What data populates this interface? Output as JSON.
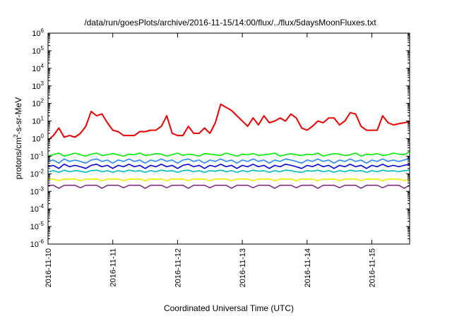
{
  "chart_data": {
    "type": "line",
    "title": "/data/run/goesPlots/archive/2016-11-15/14:00/flux/../flux/5daysMoonFluxes.txt",
    "xlabel": "Coordinated Universal Time (UTC)",
    "ylabel": {
      "base": "protons/cm",
      "sup": "2",
      "rest": "-s-sr-MeV"
    },
    "x_ticks": [
      "2016-11-10",
      "2016-11-11",
      "2016-11-12",
      "2016-11-13",
      "2016-11-14",
      "2016-11-15"
    ],
    "xlim": [
      "2016-11-10",
      "2016-11-15 14:00"
    ],
    "yscale": "log",
    "ylim": [
      1e-06,
      1000000.0
    ],
    "y_ticks": [
      {
        "base": "10",
        "exp": "-6",
        "value": 1e-06
      },
      {
        "base": "10",
        "exp": "-5",
        "value": 1e-05
      },
      {
        "base": "10",
        "exp": "-4",
        "value": 0.0001
      },
      {
        "base": "10",
        "exp": "-3",
        "value": 0.001
      },
      {
        "base": "10",
        "exp": "-2",
        "value": 0.01
      },
      {
        "base": "10",
        "exp": "-1",
        "value": 0.1
      },
      {
        "base": "10",
        "exp": "0",
        "value": 1
      },
      {
        "base": "10",
        "exp": "1",
        "value": 10
      },
      {
        "base": "10",
        "exp": "2",
        "value": 100
      },
      {
        "base": "10",
        "exp": "3",
        "value": 1000
      },
      {
        "base": "10",
        "exp": "4",
        "value": 10000
      },
      {
        "base": "10",
        "exp": "5",
        "value": 100000
      },
      {
        "base": "10",
        "exp": "6",
        "value": 1000000
      }
    ],
    "grid": false,
    "x": [
      "2016-11-10 00:00",
      "2016-11-10 02:00",
      "2016-11-10 04:00",
      "2016-11-10 06:00",
      "2016-11-10 08:00",
      "2016-11-10 10:00",
      "2016-11-10 12:00",
      "2016-11-10 14:00",
      "2016-11-10 16:00",
      "2016-11-10 18:00",
      "2016-11-10 20:00",
      "2016-11-10 22:00",
      "2016-11-11 00:00",
      "2016-11-11 02:00",
      "2016-11-11 04:00",
      "2016-11-11 06:00",
      "2016-11-11 08:00",
      "2016-11-11 10:00",
      "2016-11-11 12:00",
      "2016-11-11 14:00",
      "2016-11-11 16:00",
      "2016-11-11 18:00",
      "2016-11-11 20:00",
      "2016-11-11 22:00",
      "2016-11-12 00:00",
      "2016-11-12 02:00",
      "2016-11-12 04:00",
      "2016-11-12 06:00",
      "2016-11-12 08:00",
      "2016-11-12 10:00",
      "2016-11-12 12:00",
      "2016-11-12 14:00",
      "2016-11-12 16:00",
      "2016-11-12 18:00",
      "2016-11-12 20:00",
      "2016-11-12 22:00",
      "2016-11-13 00:00",
      "2016-11-13 02:00",
      "2016-11-13 04:00",
      "2016-11-13 06:00",
      "2016-11-13 08:00",
      "2016-11-13 10:00",
      "2016-11-13 12:00",
      "2016-11-13 14:00",
      "2016-11-13 16:00",
      "2016-11-13 18:00",
      "2016-11-13 20:00",
      "2016-11-13 22:00",
      "2016-11-14 00:00",
      "2016-11-14 02:00",
      "2016-11-14 04:00",
      "2016-11-14 06:00",
      "2016-11-14 08:00",
      "2016-11-14 10:00",
      "2016-11-14 12:00",
      "2016-11-14 14:00",
      "2016-11-14 16:00",
      "2016-11-14 18:00",
      "2016-11-14 20:00",
      "2016-11-14 22:00",
      "2016-11-15 00:00",
      "2016-11-15 02:00",
      "2016-11-15 04:00",
      "2016-11-15 06:00",
      "2016-11-15 08:00",
      "2016-11-15 10:00",
      "2016-11-15 12:00",
      "2016-11-15 14:00"
    ],
    "series": [
      {
        "color": "#ee0000",
        "values": [
          0.8,
          1.5,
          4,
          1.2,
          1.5,
          1.2,
          2,
          5,
          35,
          20,
          25,
          8,
          3,
          2.5,
          1.5,
          1.5,
          1.5,
          2.5,
          2.5,
          3,
          3,
          5,
          20,
          2,
          1.5,
          1.5,
          5,
          2,
          2,
          4,
          2,
          8,
          90,
          60,
          40,
          20,
          10,
          5,
          15,
          6,
          20,
          8,
          10,
          15,
          10,
          25,
          15,
          4,
          3,
          5,
          10,
          8,
          15,
          15,
          6,
          10,
          30,
          25,
          5,
          3,
          3,
          3,
          20,
          8,
          6,
          7,
          8,
          9
        ]
      },
      {
        "color": "#00ee00",
        "values": [
          0.1,
          0.12,
          0.15,
          0.1,
          0.12,
          0.15,
          0.12,
          0.1,
          0.13,
          0.15,
          0.11,
          0.12,
          0.14,
          0.12,
          0.1,
          0.13,
          0.12,
          0.15,
          0.11,
          0.12,
          0.14,
          0.13,
          0.1,
          0.12,
          0.15,
          0.11,
          0.13,
          0.12,
          0.1,
          0.14,
          0.13,
          0.12,
          0.11,
          0.15,
          0.12,
          0.1,
          0.13,
          0.12,
          0.14,
          0.11,
          0.12,
          0.13,
          0.15,
          0.1,
          0.12,
          0.14,
          0.12,
          0.11,
          0.13,
          0.12,
          0.15,
          0.1,
          0.12,
          0.14,
          0.13,
          0.11,
          0.12,
          0.15,
          0.1,
          0.13,
          0.12,
          0.14,
          0.11,
          0.12,
          0.15,
          0.13,
          0.12,
          0.18
        ]
      },
      {
        "color": "#2288ff",
        "values": [
          0.05,
          0.06,
          0.04,
          0.07,
          0.05,
          0.06,
          0.05,
          0.04,
          0.06,
          0.07,
          0.05,
          0.06,
          0.04,
          0.06,
          0.05,
          0.07,
          0.05,
          0.06,
          0.04,
          0.06,
          0.05,
          0.07,
          0.05,
          0.06,
          0.04,
          0.06,
          0.07,
          0.05,
          0.06,
          0.04,
          0.06,
          0.05,
          0.07,
          0.05,
          0.06,
          0.04,
          0.06,
          0.05,
          0.07,
          0.05,
          0.06,
          0.04,
          0.06,
          0.05,
          0.07,
          0.06,
          0.05,
          0.04,
          0.06,
          0.05,
          0.07,
          0.05,
          0.06,
          0.04,
          0.06,
          0.05,
          0.07,
          0.05,
          0.06,
          0.04,
          0.06,
          0.05,
          0.07,
          0.05,
          0.06,
          0.05,
          0.06,
          0.08
        ]
      },
      {
        "color": "#0000dd",
        "values": [
          0.025,
          0.03,
          0.02,
          0.035,
          0.025,
          0.03,
          0.025,
          0.02,
          0.03,
          0.035,
          0.025,
          0.03,
          0.02,
          0.03,
          0.025,
          0.035,
          0.025,
          0.03,
          0.02,
          0.03,
          0.025,
          0.035,
          0.025,
          0.03,
          0.02,
          0.03,
          0.035,
          0.025,
          0.03,
          0.02,
          0.03,
          0.025,
          0.035,
          0.025,
          0.03,
          0.02,
          0.03,
          0.025,
          0.035,
          0.025,
          0.03,
          0.02,
          0.03,
          0.025,
          0.035,
          0.03,
          0.025,
          0.02,
          0.03,
          0.025,
          0.035,
          0.025,
          0.03,
          0.02,
          0.03,
          0.025,
          0.035,
          0.025,
          0.03,
          0.02,
          0.03,
          0.025,
          0.035,
          0.025,
          0.03,
          0.025,
          0.03,
          0.035
        ]
      },
      {
        "color": "#00bbbb",
        "values": [
          0.013,
          0.015,
          0.012,
          0.016,
          0.013,
          0.015,
          0.014,
          0.012,
          0.015,
          0.016,
          0.013,
          0.015,
          0.012,
          0.015,
          0.013,
          0.016,
          0.014,
          0.015,
          0.012,
          0.015,
          0.013,
          0.016,
          0.014,
          0.015,
          0.012,
          0.015,
          0.016,
          0.013,
          0.015,
          0.012,
          0.015,
          0.014,
          0.016,
          0.013,
          0.015,
          0.012,
          0.015,
          0.013,
          0.016,
          0.014,
          0.015,
          0.012,
          0.015,
          0.013,
          0.016,
          0.015,
          0.013,
          0.012,
          0.015,
          0.014,
          0.016,
          0.013,
          0.015,
          0.012,
          0.015,
          0.013,
          0.016,
          0.014,
          0.015,
          0.012,
          0.015,
          0.013,
          0.016,
          0.014,
          0.015,
          0.013,
          0.015,
          0.016
        ]
      },
      {
        "color": "#eeee00",
        "values": [
          0.005,
          0.005,
          0.004,
          0.005,
          0.005,
          0.005,
          0.004,
          0.005,
          0.005,
          0.005,
          0.004,
          0.005,
          0.005,
          0.005,
          0.004,
          0.005,
          0.005,
          0.005,
          0.004,
          0.005,
          0.005,
          0.005,
          0.004,
          0.005,
          0.005,
          0.005,
          0.004,
          0.005,
          0.005,
          0.005,
          0.004,
          0.005,
          0.005,
          0.005,
          0.004,
          0.005,
          0.005,
          0.005,
          0.004,
          0.005,
          0.005,
          0.005,
          0.004,
          0.005,
          0.005,
          0.005,
          0.004,
          0.005,
          0.005,
          0.005,
          0.004,
          0.005,
          0.005,
          0.005,
          0.004,
          0.005,
          0.005,
          0.005,
          0.004,
          0.005,
          0.005,
          0.005,
          0.004,
          0.005,
          0.005,
          0.005,
          0.004,
          0.005
        ]
      },
      {
        "color": "#7f2a7f",
        "values": [
          0.0022,
          0.0022,
          0.0015,
          0.0022,
          0.0022,
          0.0022,
          0.0016,
          0.0022,
          0.0022,
          0.0022,
          0.0015,
          0.0022,
          0.0022,
          0.0022,
          0.0016,
          0.0022,
          0.0022,
          0.0022,
          0.0015,
          0.0022,
          0.0022,
          0.0022,
          0.0016,
          0.0022,
          0.0022,
          0.0022,
          0.0015,
          0.0022,
          0.0022,
          0.0022,
          0.0016,
          0.0022,
          0.0022,
          0.0022,
          0.0015,
          0.0022,
          0.0022,
          0.0022,
          0.0016,
          0.0022,
          0.0022,
          0.0022,
          0.0015,
          0.0022,
          0.0022,
          0.0022,
          0.0016,
          0.0022,
          0.0022,
          0.0022,
          0.0015,
          0.0022,
          0.0022,
          0.0022,
          0.0016,
          0.0022,
          0.0022,
          0.0022,
          0.0015,
          0.0022,
          0.0022,
          0.0022,
          0.0016,
          0.0022,
          0.0022,
          0.0022,
          0.0015,
          0.0022
        ]
      }
    ]
  }
}
